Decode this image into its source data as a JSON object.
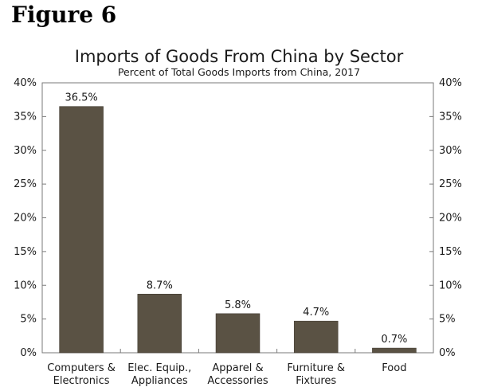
{
  "figure_label": "Figure 6",
  "chart_data": {
    "type": "bar",
    "title": "Imports of Goods From China by Sector",
    "subtitle": "Percent of Total Goods Imports from China, 2017",
    "categories": [
      [
        "Computers &",
        "Electronics"
      ],
      [
        "Elec. Equip.,",
        "Appliances"
      ],
      [
        "Apparel &",
        "Accessories"
      ],
      [
        "Furniture &",
        "Fixtures"
      ],
      [
        "Food"
      ]
    ],
    "values": [
      36.5,
      8.7,
      5.8,
      4.7,
      0.7
    ],
    "data_labels": [
      "36.5%",
      "8.7%",
      "5.8%",
      "4.7%",
      "0.7%"
    ],
    "ylim": [
      0,
      40
    ],
    "yticks": [
      0,
      5,
      10,
      15,
      20,
      25,
      30,
      35,
      40
    ],
    "ytick_labels": [
      "0%",
      "5%",
      "10%",
      "15%",
      "20%",
      "25%",
      "30%",
      "35%",
      "40%"
    ],
    "xlabel": "",
    "ylabel": "",
    "grid": false,
    "bar_color": "#5a5244",
    "axis_color": "#7a7a7a"
  }
}
